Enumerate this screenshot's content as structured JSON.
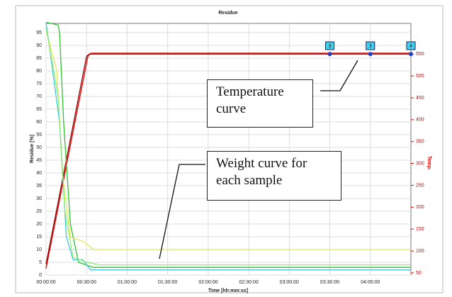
{
  "chart_data": {
    "type": "line",
    "title": "Residue",
    "xlabel": "Time [hh:mm:ss]",
    "ylabel": "Residue [%]",
    "y2label": "Temp.",
    "xlim": [
      0,
      270
    ],
    "xticks": [
      {
        "value": 0,
        "label": "00:00:00"
      },
      {
        "value": 30,
        "label": "00:30:00"
      },
      {
        "value": 60,
        "label": "01:00:00"
      },
      {
        "value": 90,
        "label": "01:30:00"
      },
      {
        "value": 120,
        "label": "02:00:00"
      },
      {
        "value": 150,
        "label": "02:30:00"
      },
      {
        "value": 180,
        "label": "03:00:00"
      },
      {
        "value": 210,
        "label": "03:30:00"
      },
      {
        "value": 240,
        "label": "04:00:00"
      }
    ],
    "ylim": [
      0,
      98.6
    ],
    "yticks": [
      0,
      5,
      10,
      15,
      20,
      25,
      30,
      35,
      40,
      45,
      50,
      55,
      60,
      65,
      70,
      75,
      80,
      85,
      90,
      95
    ],
    "y2lim": [
      45,
      620
    ],
    "y2ticks": [
      50,
      100,
      150,
      200,
      250,
      300,
      350,
      400,
      450,
      500,
      550
    ],
    "grid": true,
    "series": [
      {
        "color": "#8b0000",
        "axis": "y2",
        "x": [
          0,
          30,
          32,
          270
        ],
        "values": [
          70,
          545,
          550,
          550
        ]
      },
      {
        "color": "#e00000",
        "axis": "y2",
        "x": [
          0,
          31,
          33,
          270
        ],
        "values": [
          60,
          545,
          552,
          552
        ]
      },
      {
        "color": "#30c030",
        "x": [
          0,
          9,
          10,
          13,
          18,
          24,
          35,
          270
        ],
        "values": [
          99,
          98,
          95,
          60,
          20,
          5,
          3,
          3
        ]
      },
      {
        "color": "#e6e65a",
        "x": [
          0,
          8,
          12,
          18,
          28,
          35,
          270
        ],
        "values": [
          96,
          80,
          40,
          15,
          13,
          10,
          10
        ]
      },
      {
        "color": "#40c8e0",
        "x": [
          0,
          10,
          15,
          20,
          27,
          33,
          270
        ],
        "values": [
          99,
          60,
          15,
          6,
          6,
          2,
          2
        ]
      },
      {
        "color": "#90ee70",
        "x": [
          0,
          9,
          14,
          20,
          30,
          40,
          270
        ],
        "values": [
          97,
          70,
          25,
          7,
          5,
          4,
          4
        ]
      }
    ],
    "markers": {
      "x": [
        210,
        240,
        270
      ],
      "labels": [
        "3",
        "3",
        "4"
      ],
      "values": [
        550,
        550,
        550
      ]
    },
    "annotations": [
      "Temperature curve",
      "Weight curve for each sample"
    ]
  }
}
